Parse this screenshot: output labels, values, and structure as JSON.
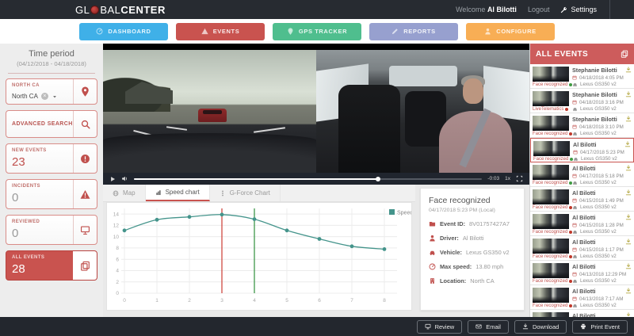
{
  "topbar": {
    "logo_prefix": "GL",
    "logo_mid": "BAL",
    "logo_bold": "CENTER",
    "welcome_label": "Welcome",
    "username": "Al Bilotti",
    "logout": "Logout",
    "settings": "Settings"
  },
  "nav": {
    "items": [
      {
        "label": "DASHBOARD",
        "color": "#3fb0e8",
        "icon": "gauge",
        "active": false
      },
      {
        "label": "EVENTS",
        "color": "#c9534f",
        "icon": "warn",
        "active": true
      },
      {
        "label": "GPS TRACKER",
        "color": "#4fbe8e",
        "icon": "pin",
        "active": false
      },
      {
        "label": "REPORTS",
        "color": "#97a0cf",
        "icon": "pencil",
        "active": false
      },
      {
        "label": "CONFIGURE",
        "color": "#f8ae55",
        "icon": "person",
        "active": false
      }
    ]
  },
  "sidebar": {
    "time_period": {
      "title": "Time period",
      "range": "(04/12/2018 - 04/18/2018)"
    },
    "filter": {
      "label": "NORTH CA",
      "value": "North CA"
    },
    "search": {
      "label": "ADVANCED SEARCH"
    },
    "stats": [
      {
        "label": "NEW EVENTS",
        "value": "23",
        "muted": false
      },
      {
        "label": "INCIDENTS",
        "value": "0",
        "muted": true
      },
      {
        "label": "REVIEWED",
        "value": "0",
        "muted": true
      },
      {
        "label": "ALL EVENTS",
        "value": "28",
        "muted": false
      }
    ]
  },
  "video": {
    "remaining": "-0:03",
    "rate": "1x",
    "progress_pct": 70
  },
  "tabs": [
    {
      "label": "Map",
      "icon": "globe",
      "active": false
    },
    {
      "label": "Speed chart",
      "icon": "bars",
      "active": true
    },
    {
      "label": "G-Force Chart",
      "icon": "gforce",
      "active": false
    }
  ],
  "chart_data": {
    "type": "line",
    "x": [
      0,
      1,
      2,
      3,
      4,
      5,
      6,
      7,
      8
    ],
    "series": [
      {
        "name": "Speed",
        "color": "#44948b",
        "values": [
          11.1,
          13.0,
          13.5,
          13.9,
          13.1,
          11.1,
          9.6,
          8.3,
          7.8
        ]
      }
    ],
    "markers": [
      {
        "x": 3,
        "color": "#cc3b33"
      },
      {
        "x": 4,
        "color": "#2f8f3c"
      }
    ],
    "ylim": [
      0,
      15
    ],
    "yticks": [
      0,
      2,
      4,
      6,
      8,
      10,
      12,
      14
    ],
    "grid": true,
    "legend_position": "top-right"
  },
  "event_panel": {
    "title": "Face recognized",
    "datetime": "04/17/2018 5:23 PM (Local)",
    "fields": [
      {
        "icon": "folder",
        "label": "Event ID:",
        "value": "8V01757427A7"
      },
      {
        "icon": "person",
        "label": "Driver:",
        "value": "Al Bilotti"
      },
      {
        "icon": "car",
        "label": "Vehicle:",
        "value": "Lexus GS350 v2"
      },
      {
        "icon": "gauge",
        "label": "Max speed:",
        "value": "13.80 mph"
      },
      {
        "icon": "building",
        "label": "Location:",
        "value": "North CA"
      }
    ]
  },
  "events_list": {
    "title": "ALL EVENTS",
    "items": [
      {
        "name": "Stephanie Bilotti",
        "date": "04/18/2018 4:05 PM",
        "vehicle": "Lexus GS350 v2",
        "tag": "Face recognized",
        "tag_color": "green",
        "selected": false
      },
      {
        "name": "Stephanie Bilotti",
        "date": "04/18/2018 3:16 PM",
        "vehicle": "Lexus GS350 v2",
        "tag": "LiveTelematics",
        "tag_color": "red",
        "selected": false
      },
      {
        "name": "Stephanie Bilotti",
        "date": "04/18/2018 3:10 PM",
        "vehicle": "Lexus GS350 v2",
        "tag": "Face recognized",
        "tag_color": "red",
        "selected": false
      },
      {
        "name": "Al Bilotti",
        "date": "04/17/2018 5:23 PM",
        "vehicle": "Lexus GS350 v2",
        "tag": "Face recognized",
        "tag_color": "green",
        "selected": true
      },
      {
        "name": "Al Bilotti",
        "date": "04/17/2018 5:18 PM",
        "vehicle": "Lexus GS350 v2",
        "tag": "Face recognized",
        "tag_color": "green",
        "selected": false
      },
      {
        "name": "Al Bilotti",
        "date": "04/15/2018 1:49 PM",
        "vehicle": "Lexus GS350 v2",
        "tag": "Face recognized",
        "tag_color": "red",
        "selected": false
      },
      {
        "name": "Al Bilotti",
        "date": "04/15/2018 1:28 PM",
        "vehicle": "Lexus GS350 v2",
        "tag": "Face recognized",
        "tag_color": "red",
        "selected": false
      },
      {
        "name": "Al Bilotti",
        "date": "04/15/2018 1:17 PM",
        "vehicle": "Lexus GS350 v2",
        "tag": "Face recognized",
        "tag_color": "red",
        "selected": false
      },
      {
        "name": "Al Bilotti",
        "date": "04/13/2018 12:29 PM",
        "vehicle": "Lexus GS350 v2",
        "tag": "Face recognized",
        "tag_color": "red",
        "selected": false
      },
      {
        "name": "Al Bilotti",
        "date": "04/13/2018 7:17 AM",
        "vehicle": "Lexus GS350 v2",
        "tag": "Face recognized",
        "tag_color": "red",
        "selected": false
      },
      {
        "name": "Al Bilotti",
        "date": "",
        "vehicle": "",
        "tag": "",
        "tag_color": "",
        "selected": false
      }
    ]
  },
  "footer": {
    "buttons": [
      {
        "icon": "monitor",
        "label": "Review"
      },
      {
        "icon": "envelope",
        "label": "Email"
      },
      {
        "icon": "download",
        "label": "Download"
      },
      {
        "icon": "printer",
        "label": "Print Event"
      }
    ]
  }
}
